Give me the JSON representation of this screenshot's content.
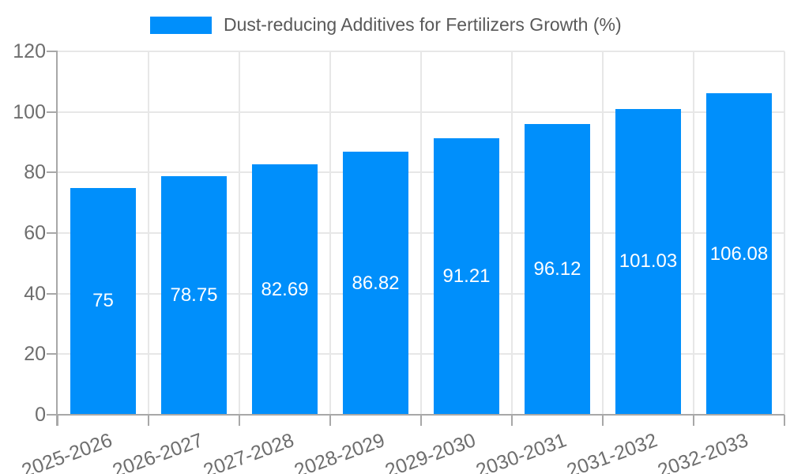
{
  "legend": {
    "label": "Dust-reducing Additives for Fertilizers Growth (%)",
    "swatch_color": "#008FFB"
  },
  "chart_data": {
    "type": "bar",
    "title": "Dust-reducing Additives for Fertilizers Growth (%)",
    "categories": [
      "2025-2026",
      "2026-2027",
      "2027-2028",
      "2028-2029",
      "2029-2030",
      "2030-2031",
      "2031-2032",
      "2032-2033"
    ],
    "values": [
      75,
      78.75,
      82.69,
      86.82,
      91.21,
      96.12,
      101.03,
      106.08
    ],
    "value_labels": [
      "75",
      "78.75",
      "82.69",
      "86.82",
      "91.21",
      "96.12",
      "101.03",
      "106.08"
    ],
    "xlabel": "",
    "ylabel": "",
    "ylim": [
      0,
      120
    ],
    "yticks": [
      0,
      20,
      40,
      60,
      80,
      100,
      120
    ],
    "ytick_labels": [
      "0",
      "20",
      "40",
      "60",
      "80",
      "100",
      "120"
    ],
    "grid": true,
    "legend_position": "top-center",
    "xtick_rotation_deg": -20,
    "colors": {
      "bar": "#008FFB",
      "bar_label": "#FFFFFF",
      "grid": "#E7E7E7",
      "axis_line": "#A8A8A8",
      "tick_label": "#6E6E6E",
      "title": "#595959",
      "background": "#FFFFFF"
    }
  }
}
